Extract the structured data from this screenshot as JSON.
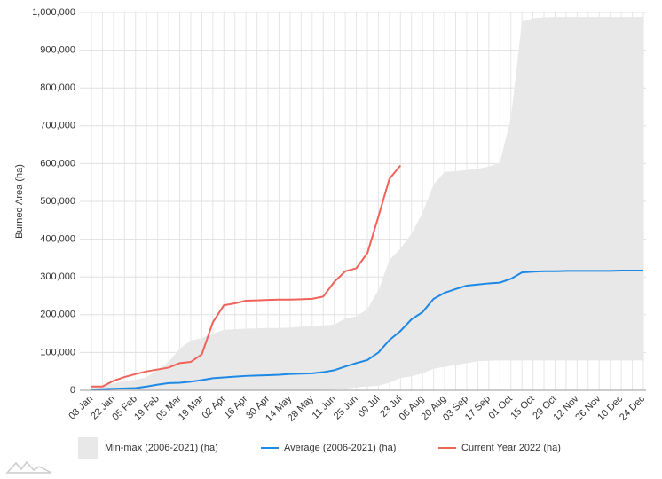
{
  "chart_data": {
    "type": "line",
    "y_label": "Burned Area (ha)",
    "categories": [
      "08 Jan",
      null,
      "22 Jan",
      null,
      "05 Feb",
      null,
      "19 Feb",
      null,
      "05 Mar",
      null,
      "19 Mar",
      null,
      "02 Apr",
      null,
      "16 Apr",
      null,
      "30 Apr",
      null,
      "14 May",
      null,
      "28 May",
      null,
      "11 Jun",
      null,
      "25 Jun",
      null,
      "09 Jul",
      null,
      "23 Jul",
      null,
      "06 Aug",
      null,
      "20 Aug",
      null,
      "03 Sep",
      null,
      "17 Sep",
      null,
      "01 Oct",
      null,
      "15 Oct",
      null,
      "29 Oct",
      null,
      "12 Nov",
      null,
      "26 Nov",
      null,
      "10 Dec",
      null,
      "24 Dec"
    ],
    "series": [
      {
        "name": "Min-max (2006-2021) (ha)",
        "type": "range",
        "color": "#e8e8e8",
        "lower": [
          0,
          0,
          0,
          0,
          0,
          0,
          0,
          0,
          0,
          0,
          0,
          0,
          0,
          0,
          0,
          0,
          0,
          0,
          0,
          0,
          0,
          1000,
          2000,
          4000,
          8000,
          10000,
          12000,
          20000,
          33000,
          37000,
          45000,
          57000,
          62000,
          67000,
          72000,
          77000,
          78000,
          79000,
          79000,
          79000,
          79000,
          79000,
          79000,
          79000,
          79000,
          79000,
          79000,
          79000,
          79000,
          79000,
          79000
        ],
        "upper": [
          10000,
          12000,
          18000,
          25000,
          28000,
          35000,
          55000,
          75000,
          110000,
          132000,
          138000,
          150000,
          160000,
          162000,
          163000,
          164000,
          165000,
          165000,
          166000,
          168000,
          170000,
          172000,
          174000,
          190000,
          195000,
          215000,
          265000,
          345000,
          375000,
          415000,
          470000,
          545000,
          578000,
          580000,
          583000,
          586000,
          592000,
          603000,
          720000,
          975000,
          985000,
          987000,
          988000,
          988000,
          988000,
          988000,
          988000,
          988000,
          988000,
          988000,
          988000
        ]
      },
      {
        "name": "Average (2006-2021) (ha)",
        "color": "#1e88e5",
        "values": [
          2000,
          3000,
          4000,
          5000,
          6000,
          10000,
          15000,
          19000,
          20000,
          23000,
          27000,
          32000,
          34000,
          36000,
          38000,
          39000,
          40000,
          41000,
          43000,
          44000,
          45000,
          48000,
          53000,
          63000,
          72000,
          80000,
          100000,
          133000,
          157000,
          188000,
          207000,
          242000,
          258000,
          268000,
          277000,
          280000,
          283000,
          285000,
          295000,
          312000,
          314000,
          315000,
          315000,
          316000,
          316000,
          316000,
          316000,
          316000,
          317000,
          317000,
          317000
        ]
      },
      {
        "name": "Current Year 2022 (ha)",
        "color": "#f0625a",
        "values": [
          10000,
          10000,
          25000,
          35000,
          43000,
          50000,
          55000,
          60000,
          72000,
          75000,
          95000,
          180000,
          225000,
          230000,
          237000,
          238000,
          239000,
          240000,
          240000,
          241000,
          242000,
          248000,
          287000,
          315000,
          323000,
          363000,
          460000,
          560000,
          595000,
          null,
          null,
          null,
          null,
          null,
          null,
          null,
          null,
          null,
          null,
          null,
          null,
          null,
          null,
          null,
          null,
          null,
          null,
          null,
          null,
          null,
          null
        ]
      }
    ],
    "ylim": [
      0,
      1000000
    ],
    "yticks": [
      0,
      {
        "value": 100000,
        "label": "100,000"
      },
      {
        "value": 200000,
        "label": "200,000"
      },
      {
        "value": 300000,
        "label": "300,000"
      },
      {
        "value": 400000,
        "label": "400,000"
      },
      {
        "value": 500000,
        "label": "500,000"
      },
      {
        "value": 600000,
        "label": "600,000"
      },
      {
        "value": 700000,
        "label": "700,000"
      },
      {
        "value": 800000,
        "label": "800,000"
      },
      {
        "value": 900000,
        "label": "900,000"
      },
      {
        "value": 1000000,
        "label": "1,000,000"
      }
    ],
    "grid": true
  }
}
